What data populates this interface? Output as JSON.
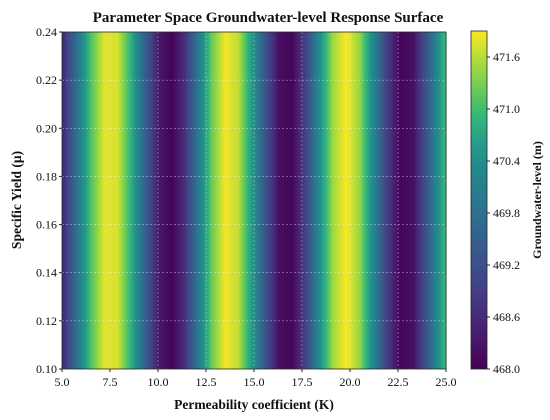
{
  "chart_data": {
    "type": "heatmap",
    "title": "Parameter Space Groundwater-level Response Surface",
    "xlabel": "Permeability coefficient (K)",
    "ylabel": "Specific Yield (μ)",
    "xlim": [
      5.0,
      25.0
    ],
    "ylim": [
      0.1,
      0.24
    ],
    "x_ticks": [
      "5.0",
      "7.5",
      "10.0",
      "12.5",
      "15.0",
      "17.5",
      "20.0",
      "22.5",
      "25.0"
    ],
    "y_ticks": [
      "0.10",
      "0.12",
      "0.14",
      "0.16",
      "0.18",
      "0.20",
      "0.22",
      "0.24"
    ],
    "grid": true,
    "colormap": "viridis",
    "z_label": "Groundwater-level (m)",
    "z_range": [
      468.0,
      471.9
    ],
    "colorbar_ticks": [
      "468.0",
      "468.6",
      "469.2",
      "469.8",
      "470.4",
      "471.0",
      "471.6"
    ],
    "surface": "Groundwater-level varies with K only (vertical bands), approx. 469.95 + 1.95*sin(2*pi*(K-6.2)/6.4); constant along Specific Yield",
    "profile_x": [
      5.0,
      5.8,
      6.5,
      7.2,
      7.9,
      8.6,
      9.3,
      10.0,
      10.7,
      11.4,
      12.1,
      12.8,
      13.5,
      14.2,
      14.9,
      15.6,
      16.3,
      17.0,
      17.7,
      18.4,
      19.1,
      19.8,
      20.5,
      21.2,
      21.9,
      22.6,
      23.3,
      24.0,
      25.0
    ],
    "profile_z": [
      468.48,
      469.85,
      471.06,
      471.79,
      471.73,
      470.84,
      469.55,
      468.38,
      468.02,
      468.67,
      469.97,
      471.23,
      471.86,
      471.62,
      470.56,
      469.25,
      468.2,
      468.07,
      468.97,
      470.34,
      471.48,
      471.9,
      471.45,
      470.28,
      468.95,
      468.06,
      468.22,
      469.34,
      471.06
    ]
  }
}
